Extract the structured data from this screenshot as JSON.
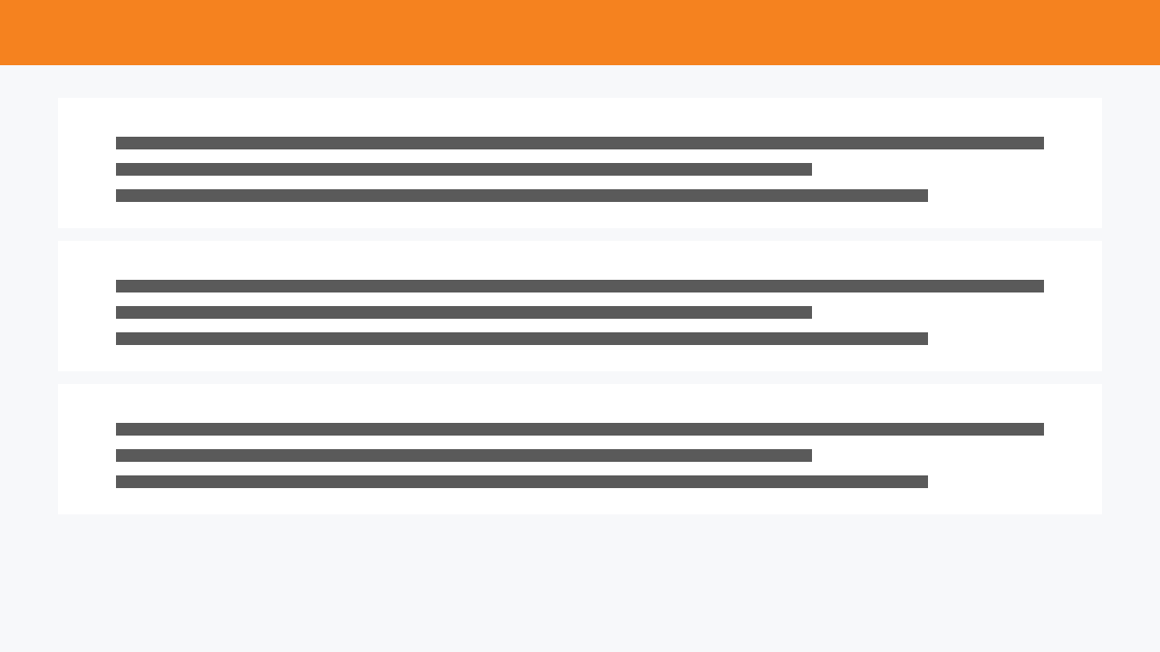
{
  "colors": {
    "header": "#f5821f",
    "background": "#f7f8fa",
    "card": "#ffffff",
    "placeholder_bar": "#5a5a5a"
  },
  "header": {
    "style": "solid accent bar, no text"
  },
  "cards": [
    {
      "lines": [
        {
          "kind": "placeholder"
        },
        {
          "kind": "placeholder"
        },
        {
          "kind": "placeholder"
        }
      ]
    },
    {
      "lines": [
        {
          "kind": "placeholder"
        },
        {
          "kind": "placeholder"
        },
        {
          "kind": "placeholder"
        }
      ]
    },
    {
      "lines": [
        {
          "kind": "placeholder"
        },
        {
          "kind": "placeholder"
        },
        {
          "kind": "placeholder"
        }
      ]
    }
  ]
}
